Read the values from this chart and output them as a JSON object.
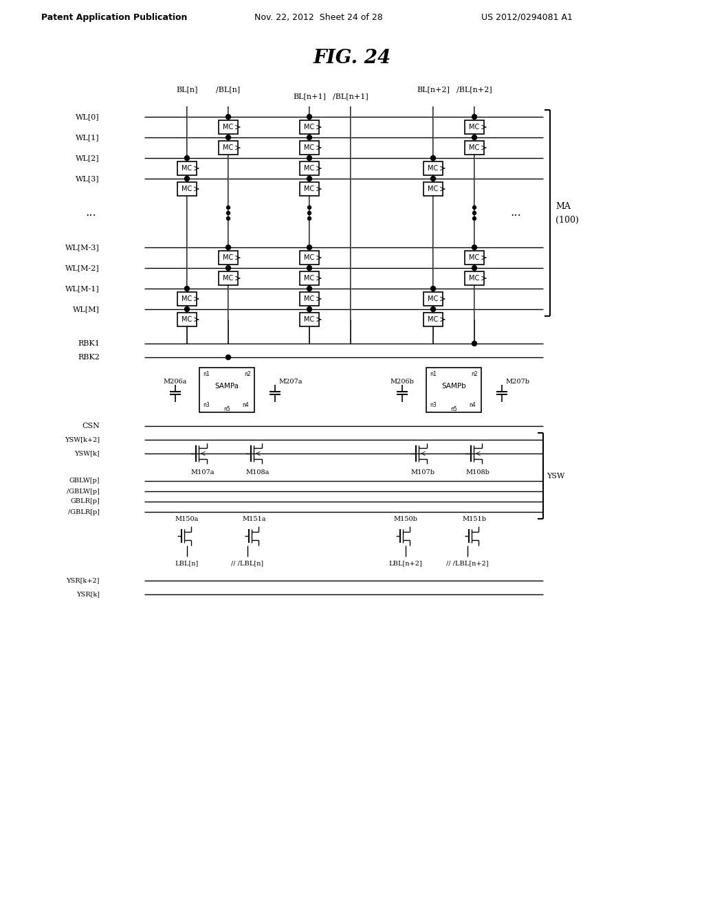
{
  "title": "FIG. 24",
  "header_left": "Patent Application Publication",
  "header_mid": "Nov. 22, 2012  Sheet 24 of 28",
  "header_right": "US 2012/0294081 A1",
  "bg_color": "#ffffff",
  "text_color": "#000000"
}
